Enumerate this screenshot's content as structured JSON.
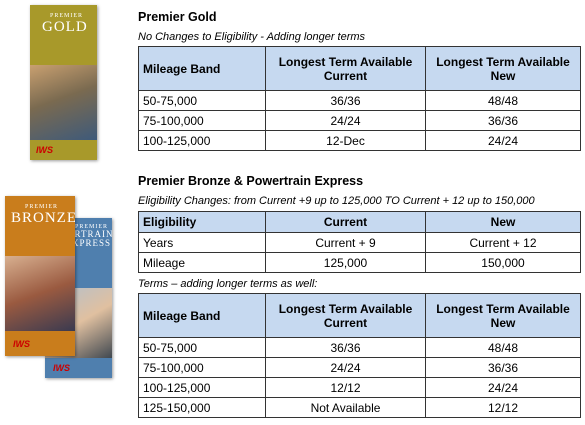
{
  "brochures": [
    {
      "line1": "PREMIER",
      "line2": "GOLD",
      "brand": "IWS"
    },
    {
      "line1": "PREMIER",
      "line2": "POWERTRAIN EXPRESS",
      "brand": "IWS"
    },
    {
      "line1": "PREMIER",
      "line2": "BRONZE",
      "brand": "IWS"
    }
  ],
  "sections": [
    {
      "title": "Premier Gold",
      "blocks": [
        {
          "note": "No Changes to Eligibility - Adding longer terms",
          "header": [
            "Mileage Band",
            "Longest Term Available Current",
            "Longest Term Available New"
          ],
          "rows": [
            [
              "50-75,000",
              "36/36",
              "48/48"
            ],
            [
              "75-100,000",
              "24/24",
              "36/36"
            ],
            [
              "100-125,000",
              "12-Dec",
              "24/24"
            ]
          ]
        }
      ]
    },
    {
      "title": "Premier Bronze & Powertrain Express",
      "blocks": [
        {
          "note": "Eligibility Changes: from Current +9 up to 125,000 TO Current + 12 up to 150,000",
          "header": [
            "Eligibility",
            "Current",
            "New"
          ],
          "rows": [
            [
              "Years",
              "Current + 9",
              "Current + 12"
            ],
            [
              "Mileage",
              "125,000",
              "150,000"
            ]
          ]
        },
        {
          "note": "Terms – adding longer terms as well:",
          "header": [
            "Mileage Band",
            "Longest Term Available Current",
            "Longest Term Available New"
          ],
          "rows": [
            [
              "50-75,000",
              "36/36",
              "48/48"
            ],
            [
              "75-100,000",
              "24/24",
              "36/36"
            ],
            [
              "100-125,000",
              "12/12",
              "24/24"
            ],
            [
              "125-150,000",
              "Not Available",
              "12/12"
            ]
          ]
        }
      ]
    }
  ]
}
